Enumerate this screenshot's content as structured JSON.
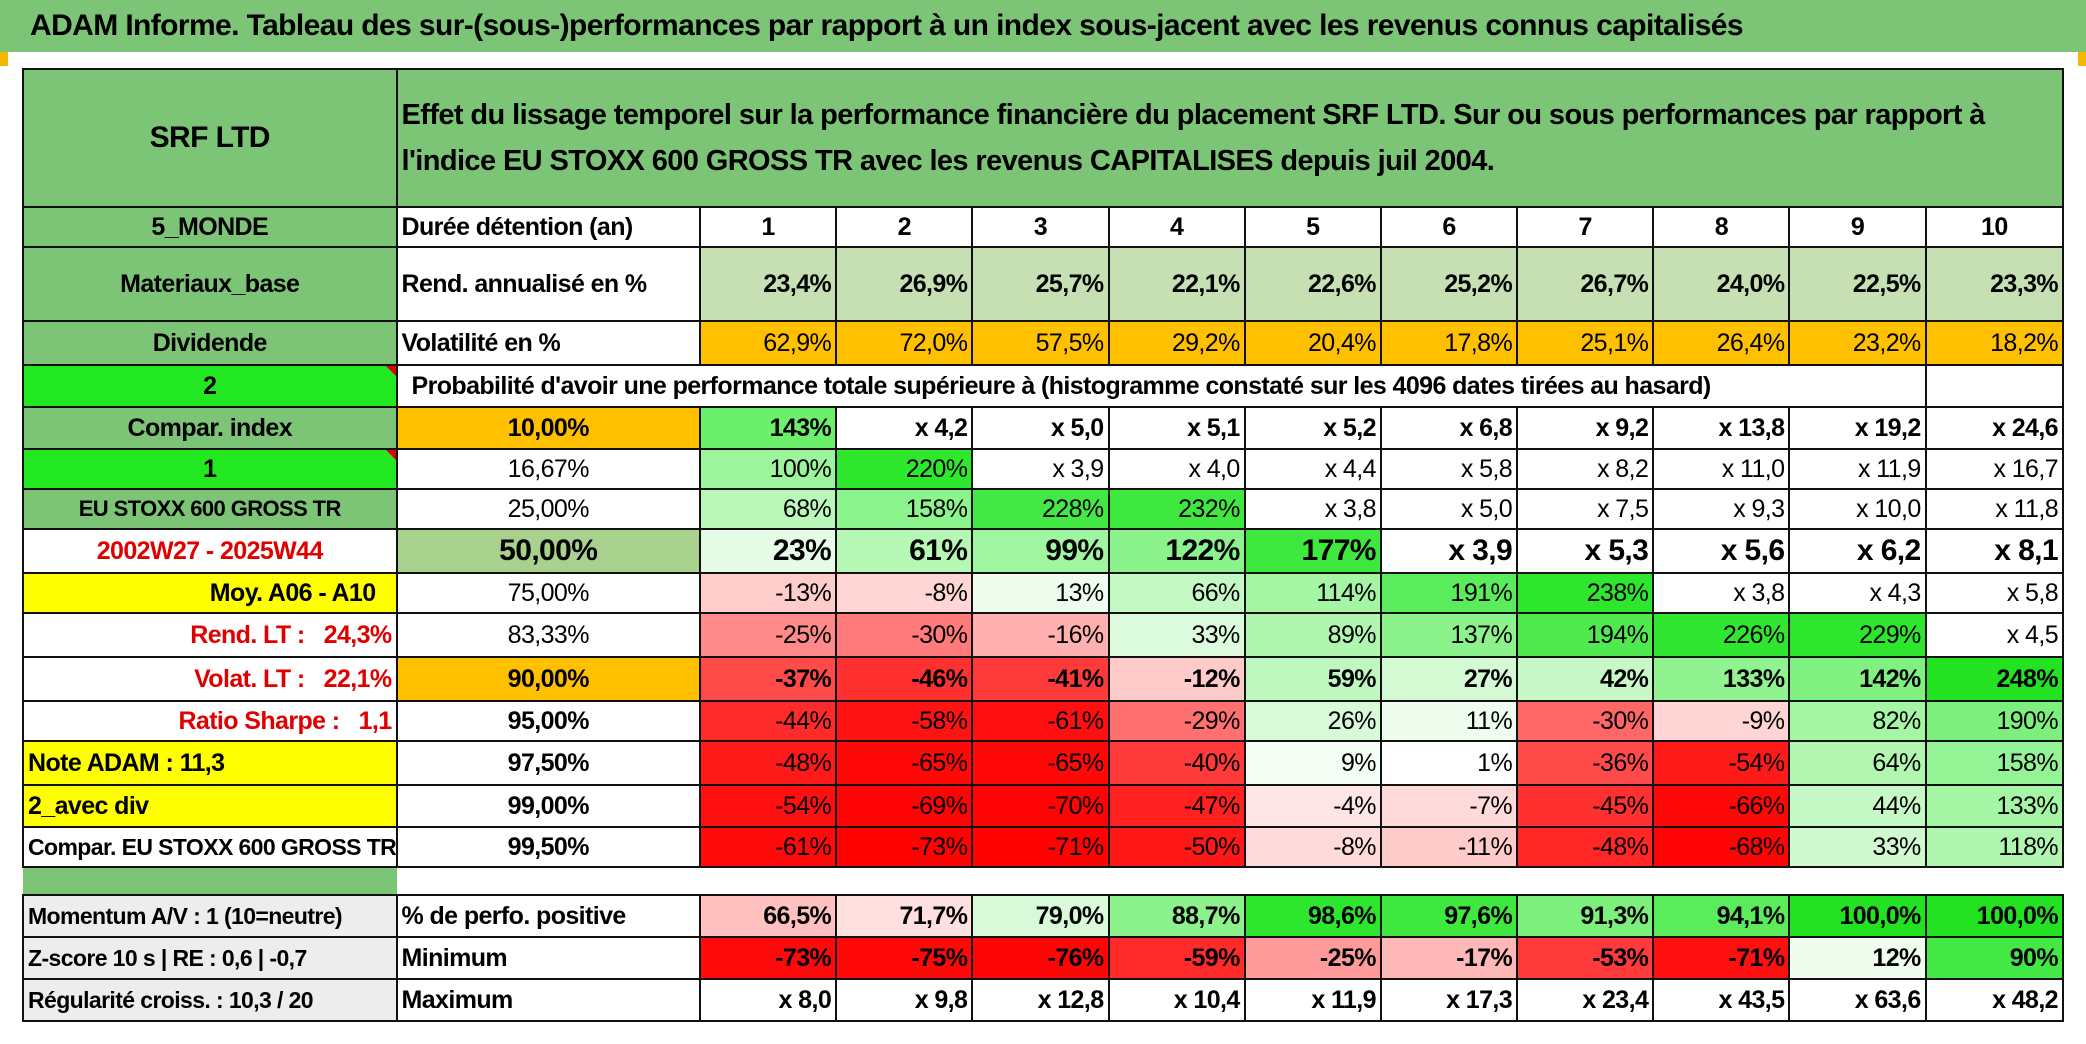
{
  "title": "ADAM Informe. Tableau des sur-(sous-)performances par rapport à un index sous-jacent avec les revenus connus capitalisés",
  "header": {
    "asset": "SRF LTD",
    "description": "Effet du lissage temporel sur la performance financière du placement SRF LTD. Sur ou sous performances par rapport à l'indice EU STOXX 600 GROSS TR avec les revenus CAPITALISES depuis juil 2004."
  },
  "side": {
    "zone": "5_MONDE",
    "sector": "Materiaux_base",
    "type": "Dividende",
    "selector1": "2",
    "compar": "Compar. index",
    "selector2": "1",
    "index_name": "EU STOXX 600 GROSS TR",
    "period": "2002W27 - 2025W44",
    "moy": "Moy. A06 - A10",
    "rend_lt_label": "Rend. LT :",
    "rend_lt_value": "24,3%",
    "volat_lt_label": "Volat. LT :",
    "volat_lt_value": "22,1%",
    "sharpe_label": "Ratio Sharpe :",
    "sharpe_value": "1,1",
    "note": "Note ADAM : 11,3",
    "avec_div": "2_avec div",
    "compar_full": "Compar. EU STOXX 600 GROSS TR",
    "momentum": "Momentum A/V : 1 (10=neutre)",
    "zscore": "Z-score 10 s | RE : 0,6 | -0,7",
    "regularite": "Régularité croiss. : 10,3 / 20"
  },
  "labels": {
    "duree": "Durée détention (an)",
    "rend": "Rend. annualisé en %",
    "volat": "Volatilité en %",
    "proba": "Probabilité d'avoir une performance totale supérieure à (histogramme constaté sur les 4096 dates tirées au hasard)",
    "perfo_pos": "% de perfo. positive",
    "minimum": "Minimum",
    "maximum": "Maximum"
  },
  "years": [
    "1",
    "2",
    "3",
    "4",
    "5",
    "6",
    "7",
    "8",
    "9",
    "10"
  ],
  "rend": [
    "23,4%",
    "26,9%",
    "25,7%",
    "22,1%",
    "22,6%",
    "25,2%",
    "26,7%",
    "24,0%",
    "22,5%",
    "23,3%"
  ],
  "volat": [
    "62,9%",
    "72,0%",
    "57,5%",
    "29,2%",
    "20,4%",
    "17,8%",
    "25,1%",
    "26,4%",
    "23,2%",
    "18,2%"
  ],
  "percentile_rows": [
    {
      "p": "10,00%",
      "cells": [
        "143%",
        "x 4,2",
        "x 5,0",
        "x 5,1",
        "x 5,2",
        "x 6,8",
        "x 9,2",
        "x 13,8",
        "x 19,2",
        "x 24,6"
      ]
    },
    {
      "p": "16,67%",
      "cells": [
        "100%",
        "220%",
        "x 3,9",
        "x 4,0",
        "x 4,4",
        "x 5,8",
        "x 8,2",
        "x 11,0",
        "x 11,9",
        "x 16,7"
      ]
    },
    {
      "p": "25,00%",
      "cells": [
        "68%",
        "158%",
        "228%",
        "232%",
        "x 3,8",
        "x 5,0",
        "x 7,5",
        "x 9,3",
        "x 10,0",
        "x 11,8"
      ]
    },
    {
      "p": "50,00%",
      "cells": [
        "23%",
        "61%",
        "99%",
        "122%",
        "177%",
        "x 3,9",
        "x 5,3",
        "x 5,6",
        "x 6,2",
        "x 8,1"
      ]
    },
    {
      "p": "75,00%",
      "cells": [
        "-13%",
        "-8%",
        "13%",
        "66%",
        "114%",
        "191%",
        "238%",
        "x 3,8",
        "x 4,3",
        "x 5,8"
      ]
    },
    {
      "p": "83,33%",
      "cells": [
        "-25%",
        "-30%",
        "-16%",
        "33%",
        "89%",
        "137%",
        "194%",
        "226%",
        "229%",
        "x 4,5"
      ]
    },
    {
      "p": "90,00%",
      "cells": [
        "-37%",
        "-46%",
        "-41%",
        "-12%",
        "59%",
        "27%",
        "42%",
        "133%",
        "142%",
        "248%"
      ]
    },
    {
      "p": "95,00%",
      "cells": [
        "-44%",
        "-58%",
        "-61%",
        "-29%",
        "26%",
        "11%",
        "-30%",
        "-9%",
        "82%",
        "190%"
      ]
    },
    {
      "p": "97,50%",
      "cells": [
        "-48%",
        "-65%",
        "-65%",
        "-40%",
        "9%",
        "1%",
        "-36%",
        "-54%",
        "64%",
        "158%"
      ]
    },
    {
      "p": "99,00%",
      "cells": [
        "-54%",
        "-69%",
        "-70%",
        "-47%",
        "-4%",
        "-7%",
        "-45%",
        "-66%",
        "44%",
        "133%"
      ]
    },
    {
      "p": "99,50%",
      "cells": [
        "-61%",
        "-73%",
        "-71%",
        "-50%",
        "-8%",
        "-11%",
        "-48%",
        "-68%",
        "33%",
        "118%"
      ]
    }
  ],
  "perfo_pos": [
    "66,5%",
    "71,7%",
    "79,0%",
    "88,7%",
    "98,6%",
    "97,6%",
    "91,3%",
    "94,1%",
    "100,0%",
    "100,0%"
  ],
  "minimum": [
    "-73%",
    "-75%",
    "-76%",
    "-59%",
    "-25%",
    "-17%",
    "-53%",
    "-71%",
    "12%",
    "90%"
  ],
  "maximum": [
    "x 8,0",
    "x 9,8",
    "x 12,8",
    "x 10,4",
    "x 11,9",
    "x 17,3",
    "x 23,4",
    "x 43,5",
    "x 63,6",
    "x 48,2"
  ],
  "colors": {
    "rend": [
      "#c6e0b4",
      "#c6e0b4",
      "#c6e0b4",
      "#c6e0b4",
      "#c6e0b4",
      "#c6e0b4",
      "#c6e0b4",
      "#c6e0b4",
      "#c6e0b4",
      "#c6e0b4"
    ],
    "volat": [
      "#ffc000",
      "#ffc000",
      "#ffc000",
      "#ffc000",
      "#ffc000",
      "#ffc000",
      "#ffc000",
      "#ffc000",
      "#ffc000",
      "#ffc000"
    ],
    "percentile_rows": [
      [
        "#6cf06c",
        "#fff",
        "#fff",
        "#fff",
        "#fff",
        "#fff",
        "#fff",
        "#fff",
        "#fff",
        "#fff"
      ],
      [
        "#9cf59c",
        "#2ee82e",
        "#fff",
        "#fff",
        "#fff",
        "#fff",
        "#fff",
        "#fff",
        "#fff",
        "#fff"
      ],
      [
        "#b9f8b9",
        "#8cf48c",
        "#44e844",
        "#3ee83e",
        "#fff",
        "#fff",
        "#fff",
        "#fff",
        "#fff",
        "#fff"
      ],
      [
        "#e6fce6",
        "#b6f7b6",
        "#a0f5a0",
        "#8cf28c",
        "#3ee83e",
        "#fff",
        "#fff",
        "#fff",
        "#fff",
        "#fff"
      ],
      [
        "#ffcccc",
        "#ffd6d6",
        "#eefdee",
        "#c4f8c4",
        "#a4f5a4",
        "#5aec5a",
        "#2ee62e",
        "#fff",
        "#fff",
        "#fff"
      ],
      [
        "#ff8a8a",
        "#ff7a7a",
        "#ffb0b0",
        "#dcfadc",
        "#b0f6b0",
        "#8cf28c",
        "#50ea50",
        "#30e630",
        "#2ee62e",
        "#fff"
      ],
      [
        "#ff4a4a",
        "#ff3030",
        "#ff3a3a",
        "#ffcaca",
        "#bff8bf",
        "#d4fad4",
        "#c8f8c8",
        "#90f390",
        "#80f080",
        "#22e222"
      ],
      [
        "#ff2a2a",
        "#ff1212",
        "#ff1010",
        "#ff7070",
        "#d8fad8",
        "#eefdee",
        "#ff6666",
        "#ffd4d4",
        "#a4f5a4",
        "#7cef7c"
      ],
      [
        "#ff1a1a",
        "#ff0808",
        "#ff0808",
        "#ff3a3a",
        "#f4fef4",
        "#ffffff",
        "#ff4a4a",
        "#ff1a1a",
        "#b2f6b2",
        "#94f394"
      ],
      [
        "#ff1010",
        "#ff0404",
        "#ff0404",
        "#ff2020",
        "#ffe6e6",
        "#ffdada",
        "#ff3030",
        "#ff0808",
        "#c6f8c6",
        "#a4f5a4"
      ],
      [
        "#ff0a0a",
        "#ff0202",
        "#ff0202",
        "#ff1818",
        "#ffdada",
        "#ffcaca",
        "#ff2626",
        "#ff0404",
        "#d0f9d0",
        "#b0f6b0"
      ]
    ],
    "perfo_pos": [
      "#ffc0c0",
      "#ffe0e0",
      "#d8fad8",
      "#8cf28c",
      "#2ee62e",
      "#3ee83e",
      "#7cef7c",
      "#5aec5a",
      "#22e222",
      "#22e222"
    ],
    "minimum": [
      "#ff0a0a",
      "#ff0808",
      "#ff0606",
      "#ff2a2a",
      "#ff9a9a",
      "#ffb8b8",
      "#ff3a3a",
      "#ff1010",
      "#eefdee",
      "#44e844"
    ],
    "maximum": [
      "#ffffff",
      "#ffffff",
      "#ffffff",
      "#ffffff",
      "#ffffff",
      "#ffffff",
      "#ffffff",
      "#ffffff",
      "#ffffff",
      "#ffffff"
    ]
  }
}
